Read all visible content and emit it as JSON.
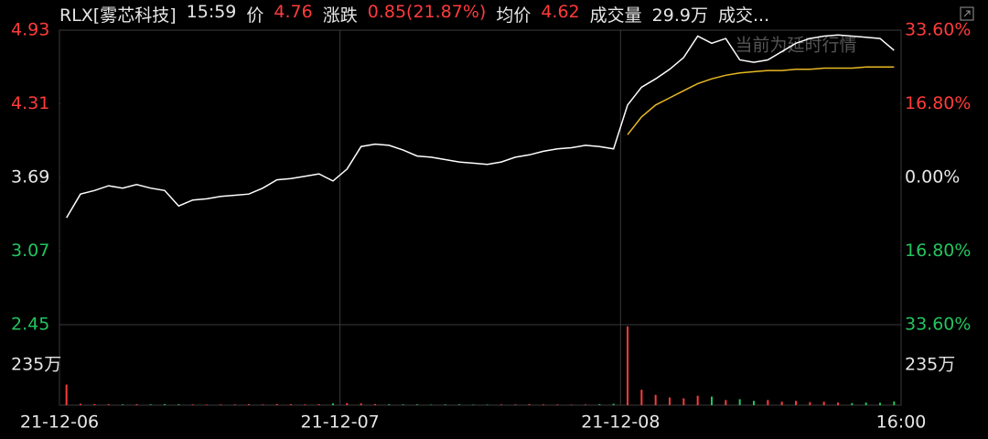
{
  "chart_data": {
    "type": "intraday",
    "title": "RLX[雾芯科技]",
    "header": [
      {
        "text": "15:59",
        "color": "#e6e6e6"
      },
      {
        "text": "价",
        "color": "#e6e6e6"
      },
      {
        "text": "4.76",
        "color": "#ff3b3b"
      },
      {
        "text": "涨跌",
        "color": "#e6e6e6"
      },
      {
        "text": "0.85(21.87%)",
        "color": "#ff3b3b"
      },
      {
        "text": "均价",
        "color": "#e6e6e6"
      },
      {
        "text": "4.62",
        "color": "#ff3b3b"
      },
      {
        "text": "成交量",
        "color": "#e6e6e6"
      },
      {
        "text": "29.9万",
        "color": "#e6e6e6"
      },
      {
        "text": "成交...",
        "color": "#e6e6e6"
      }
    ],
    "watermark": "当前为延时行情",
    "x_labels": [
      "21-12-06",
      "21-12-07",
      "21-12-08",
      "16:00"
    ],
    "ylim": [
      2.45,
      4.93
    ],
    "yticks": [
      {
        "value": 4.93,
        "label": "4.93",
        "color": "#ff3b3b"
      },
      {
        "value": 4.31,
        "label": "4.31",
        "color": "#ff3b3b"
      },
      {
        "value": 3.69,
        "label": "3.69",
        "color": "#e6e6e6"
      },
      {
        "value": 3.07,
        "label": "3.07",
        "color": "#22c55e"
      },
      {
        "value": 2.45,
        "label": "2.45",
        "color": "#22c55e"
      }
    ],
    "y2lim": [
      -33.6,
      33.6
    ],
    "y2ticks": [
      {
        "value": 33.6,
        "label": "33.60%",
        "color": "#ff3b3b"
      },
      {
        "value": 16.8,
        "label": "16.80%",
        "color": "#ff3b3b"
      },
      {
        "value": 0,
        "label": "0.00%",
        "color": "#e6e6e6"
      },
      {
        "value": -16.8,
        "label": "16.80%",
        "color": "#22c55e"
      },
      {
        "value": -33.6,
        "label": "33.60%",
        "color": "#22c55e"
      }
    ],
    "series": [
      {
        "color": "#ffffff",
        "values": [
          3.35,
          3.55,
          3.58,
          3.62,
          3.6,
          3.63,
          3.6,
          3.58,
          3.45,
          3.5,
          3.51,
          3.53,
          3.54,
          3.55,
          3.6,
          3.67,
          3.68,
          3.7,
          3.72,
          3.66,
          3.76,
          3.95,
          3.97,
          3.96,
          3.92,
          3.87,
          3.86,
          3.84,
          3.82,
          3.81,
          3.8,
          3.82,
          3.86,
          3.88,
          3.91,
          3.93,
          3.94,
          3.96,
          3.95,
          3.93,
          4.3,
          4.45,
          4.52,
          4.6,
          4.7,
          4.88,
          4.82,
          4.86,
          4.68,
          4.66,
          4.68,
          4.75,
          4.82,
          4.86,
          4.88,
          4.89,
          4.88,
          4.87,
          4.86,
          4.76
        ]
      },
      {
        "color": "#e8b923",
        "values": [
          null,
          null,
          null,
          null,
          null,
          null,
          null,
          null,
          null,
          null,
          null,
          null,
          null,
          null,
          null,
          null,
          null,
          null,
          null,
          null,
          null,
          null,
          null,
          null,
          null,
          null,
          null,
          null,
          null,
          null,
          null,
          null,
          null,
          null,
          null,
          null,
          null,
          null,
          null,
          null,
          4.05,
          4.2,
          4.3,
          4.36,
          4.42,
          4.48,
          4.52,
          4.55,
          4.57,
          4.58,
          4.59,
          4.59,
          4.6,
          4.6,
          4.61,
          4.61,
          4.61,
          4.62,
          4.62,
          4.62
        ]
      }
    ],
    "volume": {
      "ylim": [
        0,
        470
      ],
      "yticks": [
        {
          "value": 235,
          "label": "235万"
        }
      ],
      "up_color": "#ff3b3b",
      "down_color": "#22c55e",
      "values": [
        120,
        8,
        6,
        5,
        4,
        5,
        4,
        6,
        5,
        4,
        3,
        4,
        4,
        5,
        4,
        6,
        5,
        4,
        5,
        10,
        12,
        10,
        6,
        5,
        4,
        4,
        3,
        4,
        4,
        3,
        3,
        4,
        4,
        5,
        4,
        4,
        3,
        4,
        5,
        8,
        460,
        90,
        60,
        45,
        40,
        55,
        50,
        30,
        35,
        25,
        30,
        20,
        25,
        18,
        20,
        15,
        12,
        15,
        14,
        22
      ]
    }
  }
}
